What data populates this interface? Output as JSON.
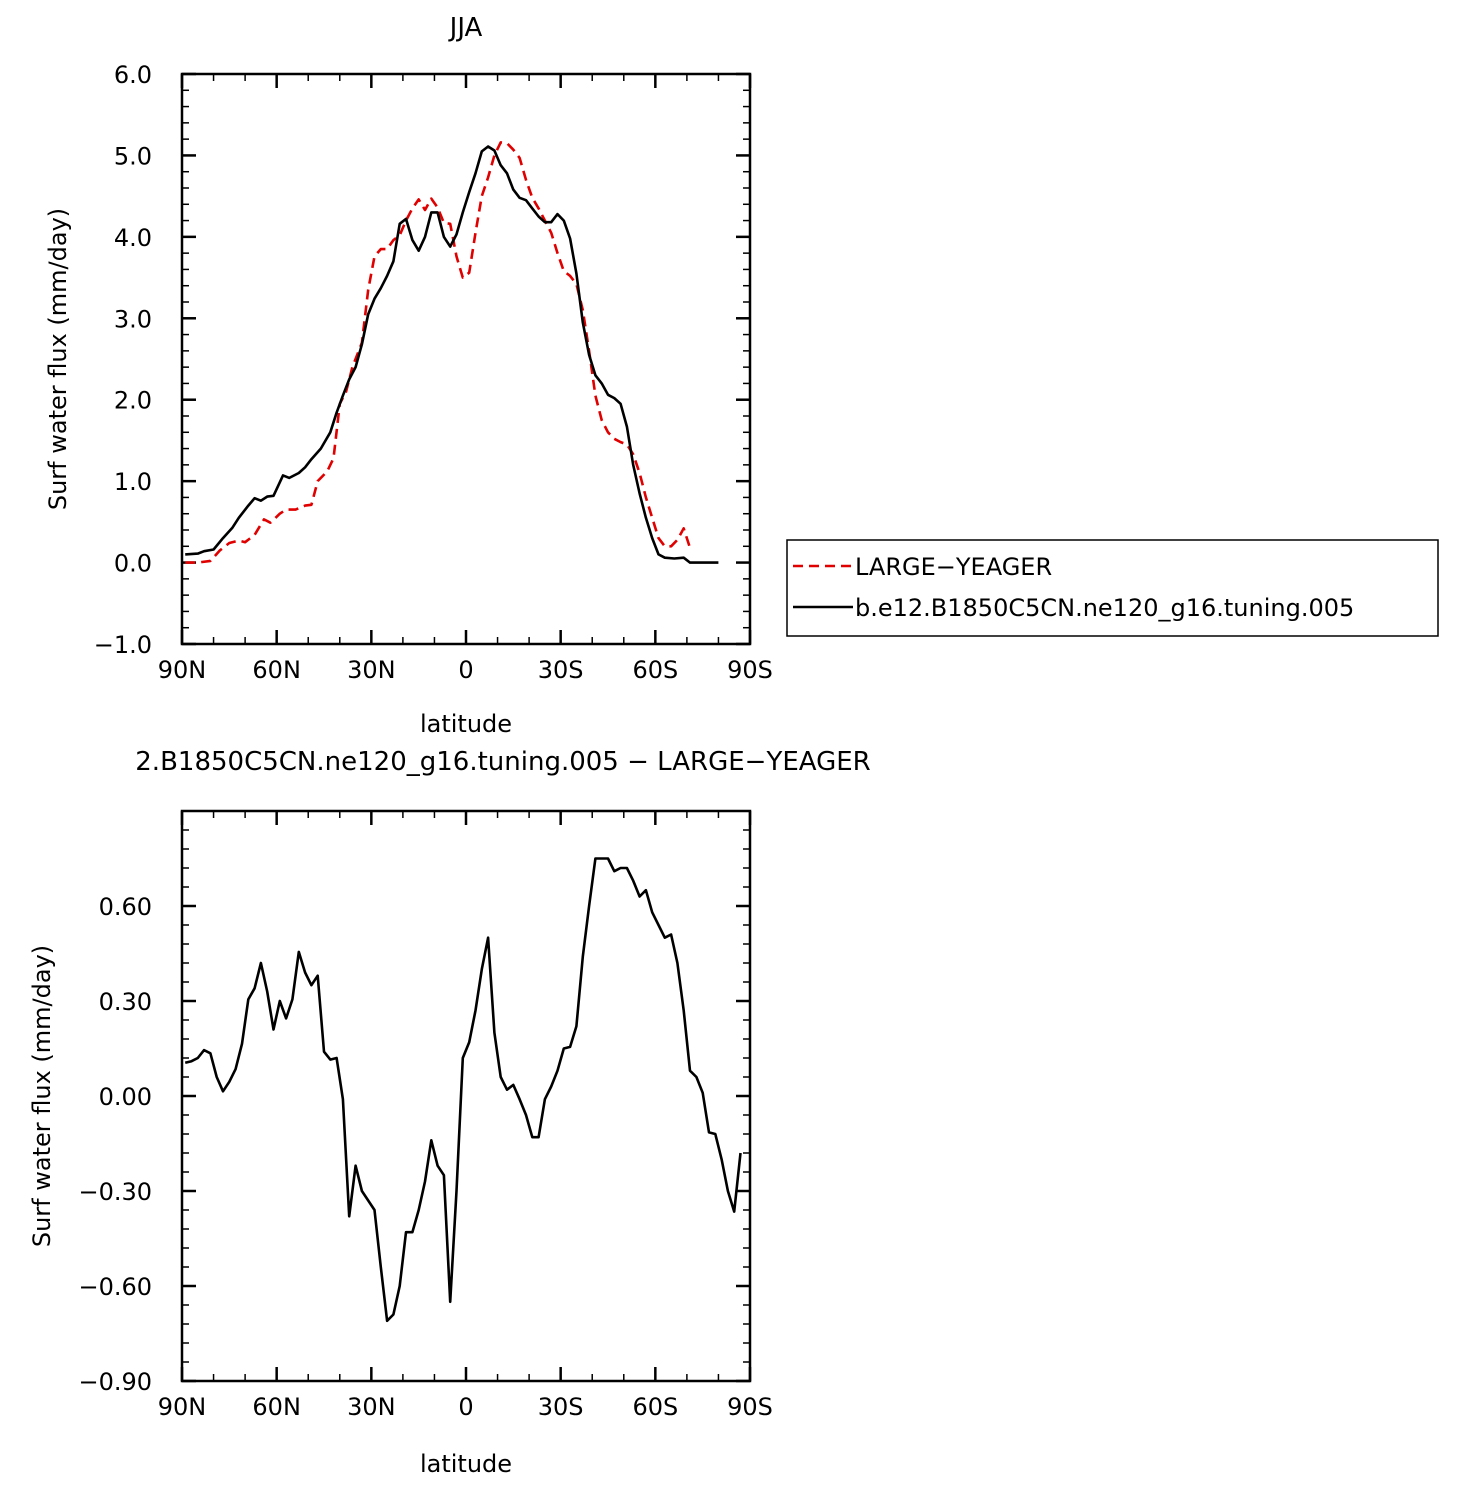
{
  "chart_data": [
    {
      "type": "line",
      "title": "JJA",
      "xlabel": "latitude",
      "ylabel": "Surf water flux (mm/day)",
      "xlim": [
        90,
        -90
      ],
      "ylim": [
        -1.0,
        6.0
      ],
      "xticks": [
        90,
        60,
        30,
        0,
        -30,
        -60,
        -90
      ],
      "xtick_labels": [
        "90N",
        "60N",
        "30N",
        "0",
        "30S",
        "60S",
        "90S"
      ],
      "yticks": [
        -1.0,
        0.0,
        1.0,
        2.0,
        3.0,
        4.0,
        5.0,
        6.0
      ],
      "ytick_labels": [
        "−1.0",
        "0.0",
        "1.0",
        "2.0",
        "3.0",
        "4.0",
        "5.0",
        "6.0"
      ],
      "legend_position": "right",
      "series": [
        {
          "name": "LARGE−YEAGER",
          "color": "#e00000",
          "dash": "dashed",
          "points": [
            [
              89,
              0.0
            ],
            [
              85,
              0.0
            ],
            [
              81,
              0.02
            ],
            [
              78,
              0.15
            ],
            [
              75,
              0.24
            ],
            [
              72,
              0.27
            ],
            [
              70,
              0.25
            ],
            [
              67,
              0.34
            ],
            [
              64,
              0.53
            ],
            [
              62,
              0.49
            ],
            [
              59,
              0.6
            ],
            [
              57,
              0.65
            ],
            [
              54,
              0.65
            ],
            [
              51,
              0.7
            ],
            [
              49,
              0.71
            ],
            [
              47,
              1.0
            ],
            [
              44,
              1.12
            ],
            [
              42,
              1.28
            ],
            [
              40,
              1.95
            ],
            [
              38,
              2.1
            ],
            [
              36,
              2.4
            ],
            [
              33,
              2.7
            ],
            [
              31,
              3.35
            ],
            [
              29,
              3.76
            ],
            [
              27,
              3.85
            ],
            [
              25,
              3.85
            ],
            [
              23,
              3.96
            ],
            [
              21,
              4.02
            ],
            [
              19,
              4.2
            ],
            [
              17,
              4.35
            ],
            [
              15,
              4.46
            ],
            [
              13,
              4.33
            ],
            [
              11,
              4.47
            ],
            [
              9,
              4.36
            ],
            [
              7,
              4.17
            ],
            [
              5,
              4.16
            ],
            [
              3,
              3.76
            ],
            [
              1,
              3.5
            ],
            [
              -1,
              3.56
            ],
            [
              -3,
              4.05
            ],
            [
              -5,
              4.5
            ],
            [
              -7,
              4.73
            ],
            [
              -9,
              5.0
            ],
            [
              -11,
              5.16
            ],
            [
              -13,
              5.15
            ],
            [
              -15,
              5.07
            ],
            [
              -17,
              4.97
            ],
            [
              -19,
              4.7
            ],
            [
              -21,
              4.48
            ],
            [
              -23,
              4.35
            ],
            [
              -25,
              4.2
            ],
            [
              -27,
              4.05
            ],
            [
              -29,
              3.8
            ],
            [
              -31,
              3.58
            ],
            [
              -33,
              3.52
            ],
            [
              -35,
              3.42
            ],
            [
              -37,
              3.1
            ],
            [
              -39,
              2.6
            ],
            [
              -41,
              2.05
            ],
            [
              -43,
              1.75
            ],
            [
              -45,
              1.6
            ],
            [
              -47,
              1.52
            ],
            [
              -49,
              1.48
            ],
            [
              -51,
              1.45
            ],
            [
              -53,
              1.33
            ],
            [
              -55,
              1.1
            ],
            [
              -57,
              0.8
            ],
            [
              -59,
              0.55
            ],
            [
              -61,
              0.3
            ],
            [
              -63,
              0.2
            ],
            [
              -65,
              0.2
            ],
            [
              -67,
              0.28
            ],
            [
              -69,
              0.42
            ],
            [
              -71,
              0.18
            ]
          ]
        },
        {
          "name": "b.e12.B1850C5CN.ne120_g16.tuning.005",
          "color": "#000000",
          "dash": "solid",
          "points": [
            [
              89,
              0.1
            ],
            [
              85,
              0.11
            ],
            [
              83,
              0.14
            ],
            [
              80,
              0.16
            ],
            [
              77,
              0.3
            ],
            [
              74,
              0.43
            ],
            [
              72,
              0.55
            ],
            [
              69,
              0.7
            ],
            [
              67,
              0.79
            ],
            [
              65,
              0.76
            ],
            [
              63,
              0.81
            ],
            [
              61,
              0.82
            ],
            [
              58,
              1.07
            ],
            [
              56,
              1.04
            ],
            [
              53,
              1.1
            ],
            [
              51,
              1.17
            ],
            [
              49,
              1.27
            ],
            [
              46,
              1.4
            ],
            [
              43,
              1.6
            ],
            [
              41,
              1.84
            ],
            [
              39,
              2.05
            ],
            [
              37,
              2.25
            ],
            [
              35,
              2.4
            ],
            [
              33,
              2.68
            ],
            [
              31,
              3.05
            ],
            [
              29,
              3.24
            ],
            [
              27,
              3.37
            ],
            [
              25,
              3.52
            ],
            [
              23,
              3.7
            ],
            [
              21,
              4.16
            ],
            [
              19,
              4.22
            ],
            [
              17,
              3.96
            ],
            [
              15,
              3.83
            ],
            [
              13,
              4.0
            ],
            [
              11,
              4.3
            ],
            [
              9,
              4.3
            ],
            [
              7,
              4.0
            ],
            [
              5,
              3.88
            ],
            [
              3,
              4.03
            ],
            [
              1,
              4.3
            ],
            [
              -1,
              4.55
            ],
            [
              -3,
              4.78
            ],
            [
              -5,
              5.05
            ],
            [
              -7,
              5.11
            ],
            [
              -9,
              5.06
            ],
            [
              -11,
              4.88
            ],
            [
              -13,
              4.78
            ],
            [
              -15,
              4.58
            ],
            [
              -17,
              4.48
            ],
            [
              -19,
              4.45
            ],
            [
              -21,
              4.35
            ],
            [
              -23,
              4.25
            ],
            [
              -25,
              4.18
            ],
            [
              -27,
              4.18
            ],
            [
              -29,
              4.28
            ],
            [
              -31,
              4.2
            ],
            [
              -33,
              3.98
            ],
            [
              -35,
              3.55
            ],
            [
              -37,
              2.95
            ],
            [
              -39,
              2.55
            ],
            [
              -41,
              2.3
            ],
            [
              -43,
              2.2
            ],
            [
              -45,
              2.06
            ],
            [
              -47,
              2.02
            ],
            [
              -49,
              1.95
            ],
            [
              -51,
              1.67
            ],
            [
              -53,
              1.2
            ],
            [
              -55,
              0.85
            ],
            [
              -57,
              0.55
            ],
            [
              -59,
              0.3
            ],
            [
              -61,
              0.1
            ],
            [
              -63,
              0.06
            ],
            [
              -66,
              0.05
            ],
            [
              -69,
              0.06
            ],
            [
              -71,
              0.0
            ],
            [
              -75,
              0.0
            ],
            [
              -78,
              0.0
            ],
            [
              -80,
              0.0
            ]
          ]
        }
      ]
    },
    {
      "type": "line",
      "title": "2.B1850C5CN.ne120_g16.tuning.005 − LARGE−YEAGER",
      "xlabel": "latitude",
      "ylabel": "Surf water flux (mm/day)",
      "xlim": [
        90,
        -90
      ],
      "ylim": [
        -0.9,
        0.9
      ],
      "xticks": [
        90,
        60,
        30,
        0,
        -30,
        -60,
        -90
      ],
      "xtick_labels": [
        "90N",
        "60N",
        "30N",
        "0",
        "30S",
        "60S",
        "90S"
      ],
      "yticks": [
        -0.9,
        -0.6,
        -0.3,
        0.0,
        0.3,
        0.6
      ],
      "ytick_labels": [
        "−0.90",
        "−0.60",
        "−0.30",
        "0.00",
        "0.30",
        "0.60"
      ],
      "series": [
        {
          "name": "",
          "color": "#000000",
          "dash": "solid",
          "points": [
            [
              89,
              0.105
            ],
            [
              87,
              0.11
            ],
            [
              85,
              0.12
            ],
            [
              83,
              0.145
            ],
            [
              81,
              0.135
            ],
            [
              79,
              0.06
            ],
            [
              77,
              0.015
            ],
            [
              75,
              0.045
            ],
            [
              73,
              0.085
            ],
            [
              71,
              0.165
            ],
            [
              69,
              0.305
            ],
            [
              67,
              0.34
            ],
            [
              65,
              0.42
            ],
            [
              63,
              0.33
            ],
            [
              61,
              0.21
            ],
            [
              59,
              0.3
            ],
            [
              57,
              0.245
            ],
            [
              55,
              0.305
            ],
            [
              53,
              0.455
            ],
            [
              51,
              0.39
            ],
            [
              49,
              0.35
            ],
            [
              47,
              0.38
            ],
            [
              45,
              0.14
            ],
            [
              43,
              0.115
            ],
            [
              41,
              0.12
            ],
            [
              39,
              -0.01
            ],
            [
              37,
              -0.38
            ],
            [
              35,
              -0.22
            ],
            [
              33,
              -0.3
            ],
            [
              31,
              -0.33
            ],
            [
              29,
              -0.36
            ],
            [
              27,
              -0.54
            ],
            [
              25,
              -0.71
            ],
            [
              23,
              -0.69
            ],
            [
              21,
              -0.6
            ],
            [
              19,
              -0.43
            ],
            [
              17,
              -0.43
            ],
            [
              15,
              -0.36
            ],
            [
              13,
              -0.27
            ],
            [
              11,
              -0.14
            ],
            [
              9,
              -0.22
            ],
            [
              7,
              -0.25
            ],
            [
              5,
              -0.65
            ],
            [
              3,
              -0.3
            ],
            [
              1,
              0.12
            ],
            [
              -1,
              0.17
            ],
            [
              -3,
              0.27
            ],
            [
              -5,
              0.4
            ],
            [
              -7,
              0.5
            ],
            [
              -9,
              0.2
            ],
            [
              -11,
              0.06
            ],
            [
              -13,
              0.02
            ],
            [
              -15,
              0.035
            ],
            [
              -17,
              -0.01
            ],
            [
              -19,
              -0.06
            ],
            [
              -21,
              -0.13
            ],
            [
              -23,
              -0.13
            ],
            [
              -25,
              -0.01
            ],
            [
              -27,
              0.03
            ],
            [
              -29,
              0.08
            ],
            [
              -31,
              0.15
            ],
            [
              -33,
              0.155
            ],
            [
              -35,
              0.22
            ],
            [
              -37,
              0.44
            ],
            [
              -39,
              0.6
            ],
            [
              -41,
              0.75
            ],
            [
              -43,
              0.75
            ],
            [
              -45,
              0.75
            ],
            [
              -47,
              0.71
            ],
            [
              -49,
              0.72
            ],
            [
              -51,
              0.72
            ],
            [
              -53,
              0.68
            ],
            [
              -55,
              0.63
            ],
            [
              -57,
              0.65
            ],
            [
              -59,
              0.58
            ],
            [
              -61,
              0.54
            ],
            [
              -63,
              0.5
            ],
            [
              -65,
              0.51
            ],
            [
              -67,
              0.42
            ],
            [
              -69,
              0.27
            ],
            [
              -71,
              0.08
            ],
            [
              -73,
              0.06
            ],
            [
              -75,
              0.01
            ],
            [
              -77,
              -0.115
            ],
            [
              -79,
              -0.12
            ],
            [
              -81,
              -0.2
            ],
            [
              -83,
              -0.3
            ],
            [
              -85,
              -0.365
            ],
            [
              -87,
              -0.18
            ]
          ]
        }
      ]
    }
  ]
}
